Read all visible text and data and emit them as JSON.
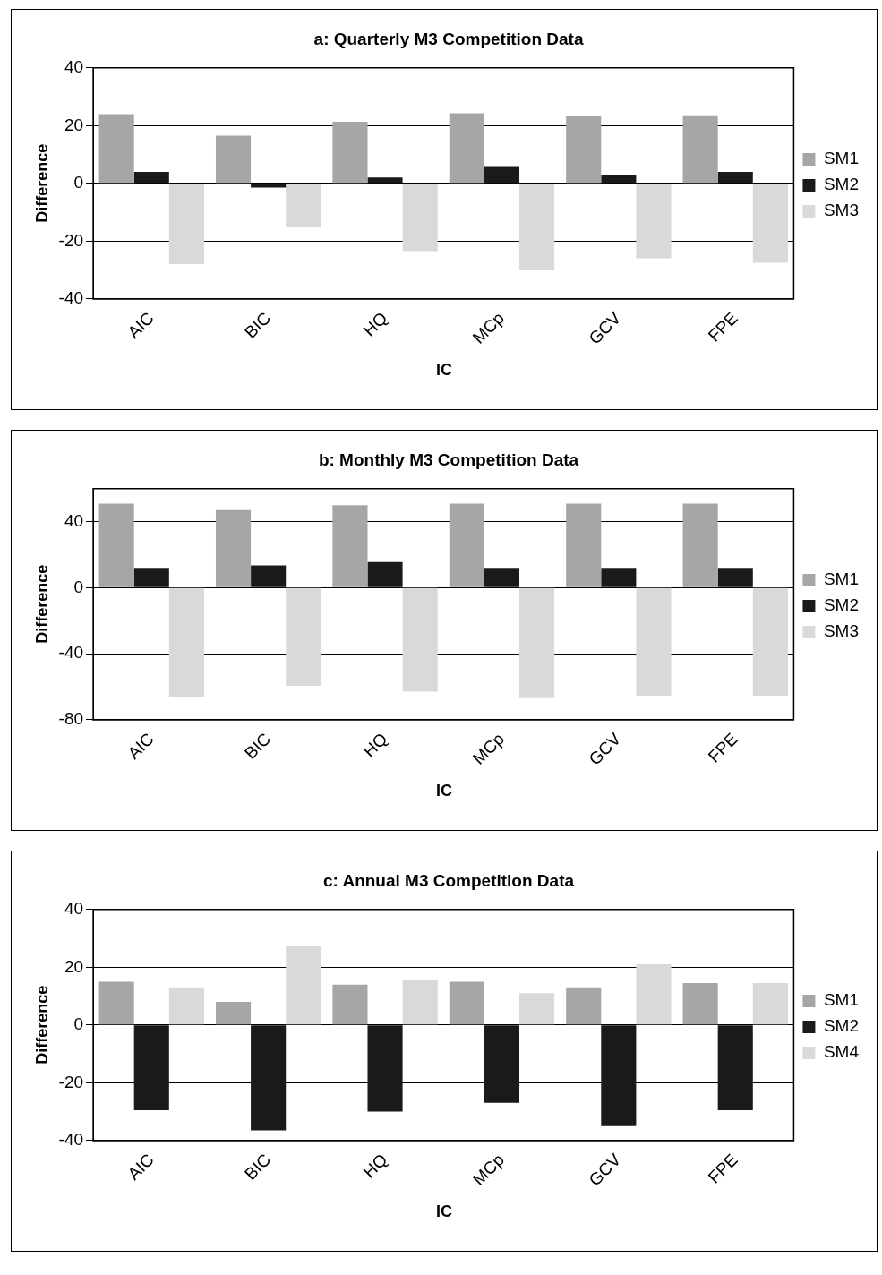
{
  "chart_data": [
    {
      "type": "bar",
      "title": "a: Quarterly M3 Competition Data",
      "xlabel": "IC",
      "ylabel": "Difference",
      "categories": [
        "AIC",
        "BIC",
        "HQ",
        "MCp",
        "GCV",
        "FPE"
      ],
      "series": [
        {
          "name": "SM1",
          "color": "#a6a6a6",
          "values": [
            24,
            16.5,
            21.3,
            24.3,
            23.3,
            23.6
          ]
        },
        {
          "name": "SM2",
          "color": "#1a1a1a",
          "values": [
            4,
            -1.5,
            2,
            6,
            3,
            4
          ]
        },
        {
          "name": "SM3",
          "color": "#d9d9d9",
          "values": [
            -28,
            -15,
            -23.5,
            -30,
            -26,
            -27.5
          ]
        }
      ],
      "ylim": [
        -40,
        40
      ],
      "yticks": [
        -40,
        -20,
        0,
        20,
        40
      ],
      "grid": "y",
      "legend": "right"
    },
    {
      "type": "bar",
      "title": "b: Monthly M3 Competition Data",
      "xlabel": "IC",
      "ylabel": "Difference",
      "categories": [
        "AIC",
        "BIC",
        "HQ",
        "MCp",
        "GCV",
        "FPE"
      ],
      "series": [
        {
          "name": "SM1",
          "color": "#a6a6a6",
          "values": [
            51,
            47,
            50,
            51,
            51,
            51
          ]
        },
        {
          "name": "SM2",
          "color": "#1a1a1a",
          "values": [
            12,
            13.5,
            15.5,
            12,
            12,
            12
          ]
        },
        {
          "name": "SM3",
          "color": "#d9d9d9",
          "values": [
            -66.5,
            -59.5,
            -63,
            -67,
            -65.5,
            -65.5
          ]
        }
      ],
      "ylim": [
        -80,
        60
      ],
      "yticks": [
        -80,
        -40,
        0,
        40
      ],
      "grid": "y",
      "legend": "right"
    },
    {
      "type": "bar",
      "title": "c: Annual M3 Competition Data",
      "xlabel": "IC",
      "ylabel": "Difference",
      "categories": [
        "AIC",
        "BIC",
        "HQ",
        "MCp",
        "GCV",
        "FPE"
      ],
      "series": [
        {
          "name": "SM1",
          "color": "#a6a6a6",
          "values": [
            15,
            8,
            14,
            15,
            13,
            14.5
          ]
        },
        {
          "name": "SM2",
          "color": "#1a1a1a",
          "values": [
            -29.5,
            -36.5,
            -30,
            -27,
            -35,
            -29.5
          ]
        },
        {
          "name": "SM4",
          "color": "#d9d9d9",
          "values": [
            13,
            27.5,
            15.5,
            11,
            21,
            14.5
          ]
        }
      ],
      "ylim": [
        -40,
        40
      ],
      "yticks": [
        -40,
        -20,
        0,
        20,
        40
      ],
      "grid": "y",
      "legend": "right"
    }
  ]
}
